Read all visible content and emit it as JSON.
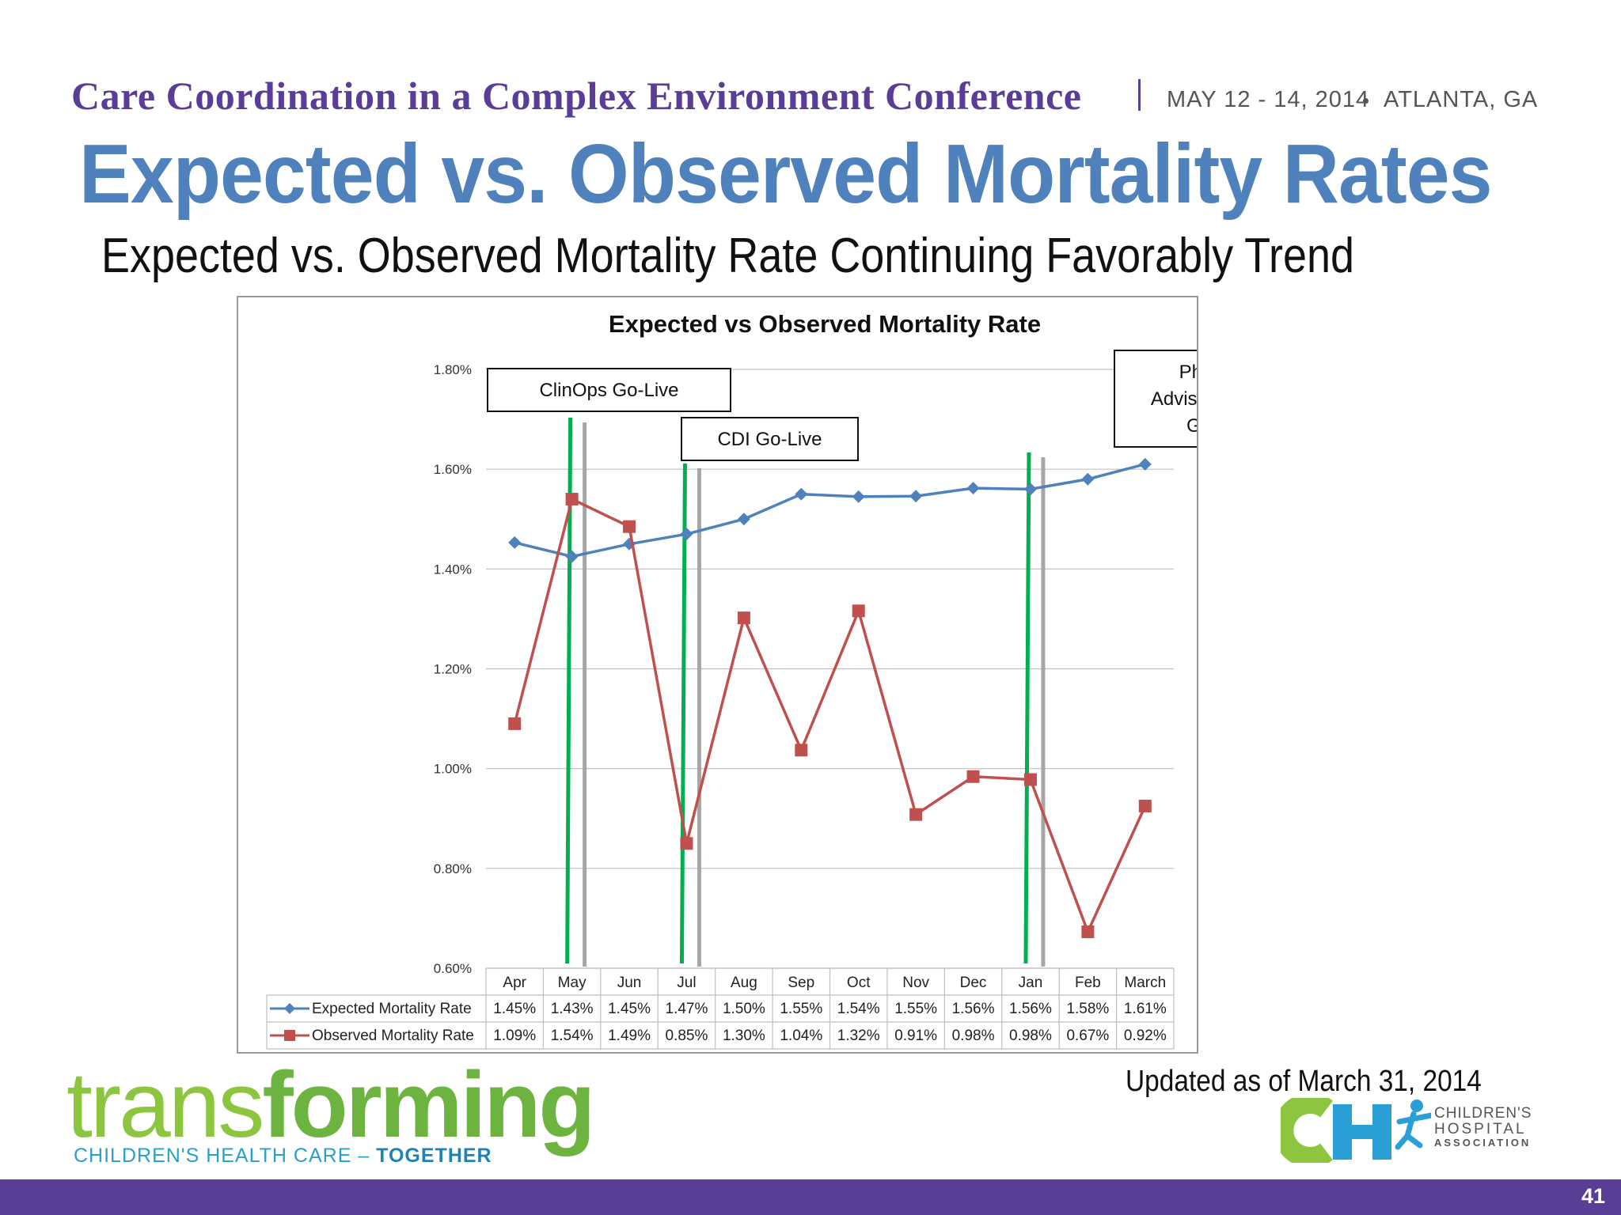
{
  "header": {
    "conference": "Care Coordination in a Complex Environment Conference",
    "date": "MAY 12 - 14, 2014",
    "location": "ATLANTA, GA"
  },
  "slide": {
    "title": "Expected vs. Observed Mortality Rates",
    "subtitle": "Expected vs. Observed Mortality Rate Continuing Favorably Trend",
    "updated": "Updated as of  March 31, 2014",
    "page_number": "41"
  },
  "footer": {
    "logo_part1": "trans",
    "logo_part2": "forming",
    "tagline_part1": "CHILDREN'S HEALTH CARE – ",
    "tagline_part2": "TOGETHER",
    "cha_line1": "CHILDREN'S",
    "cha_line2": "HOSPITAL",
    "cha_line3": "ASSOCIATION"
  },
  "colors": {
    "expected": "#4f81bd",
    "observed": "#c0504d",
    "golive_green": "#00b050",
    "golive_gray": "#a6a6a6",
    "brand_purple": "#5a3d96"
  },
  "chart_data": {
    "type": "line",
    "title": "Expected vs Observed Mortality Rate",
    "categories": [
      "Apr",
      "May",
      "Jun",
      "Jul",
      "Aug",
      "Sep",
      "Oct",
      "Nov",
      "Dec",
      "Jan",
      "Feb",
      "March"
    ],
    "ylim": [
      0.6,
      1.8
    ],
    "yticks": [
      "0.60%",
      "0.80%",
      "1.00%",
      "1.20%",
      "1.40%",
      "1.60%",
      "1.80%"
    ],
    "grid": true,
    "legend": "data-table",
    "series": [
      {
        "name": "Expected Mortality Rate",
        "marker": "diamond",
        "values": [
          1.453,
          1.425,
          1.45,
          1.47,
          1.5,
          1.55,
          1.545,
          1.546,
          1.562,
          1.56,
          1.58,
          1.61
        ],
        "labels": [
          "1.45%",
          "1.43%",
          "1.45%",
          "1.47%",
          "1.50%",
          "1.55%",
          "1.54%",
          "1.55%",
          "1.56%",
          "1.56%",
          "1.58%",
          "1.61%"
        ]
      },
      {
        "name": "Observed Mortality Rate",
        "marker": "square",
        "values": [
          1.09,
          1.54,
          1.485,
          0.85,
          1.302,
          1.037,
          1.316,
          0.908,
          0.984,
          0.978,
          0.673,
          0.925
        ],
        "labels": [
          "1.09%",
          "1.54%",
          "1.49%",
          "0.85%",
          "1.30%",
          "1.04%",
          "1.32%",
          "0.91%",
          "0.98%",
          "0.98%",
          "0.67%",
          "0.92%"
        ]
      }
    ],
    "annotations": [
      {
        "label": "ClinOps Go-Live",
        "category": "May"
      },
      {
        "label": "CDI Go-Live",
        "category": "Jul"
      },
      {
        "label": "Physician\nAdvisor/CM Tool\nGo-Live",
        "category": "Jan"
      }
    ]
  }
}
